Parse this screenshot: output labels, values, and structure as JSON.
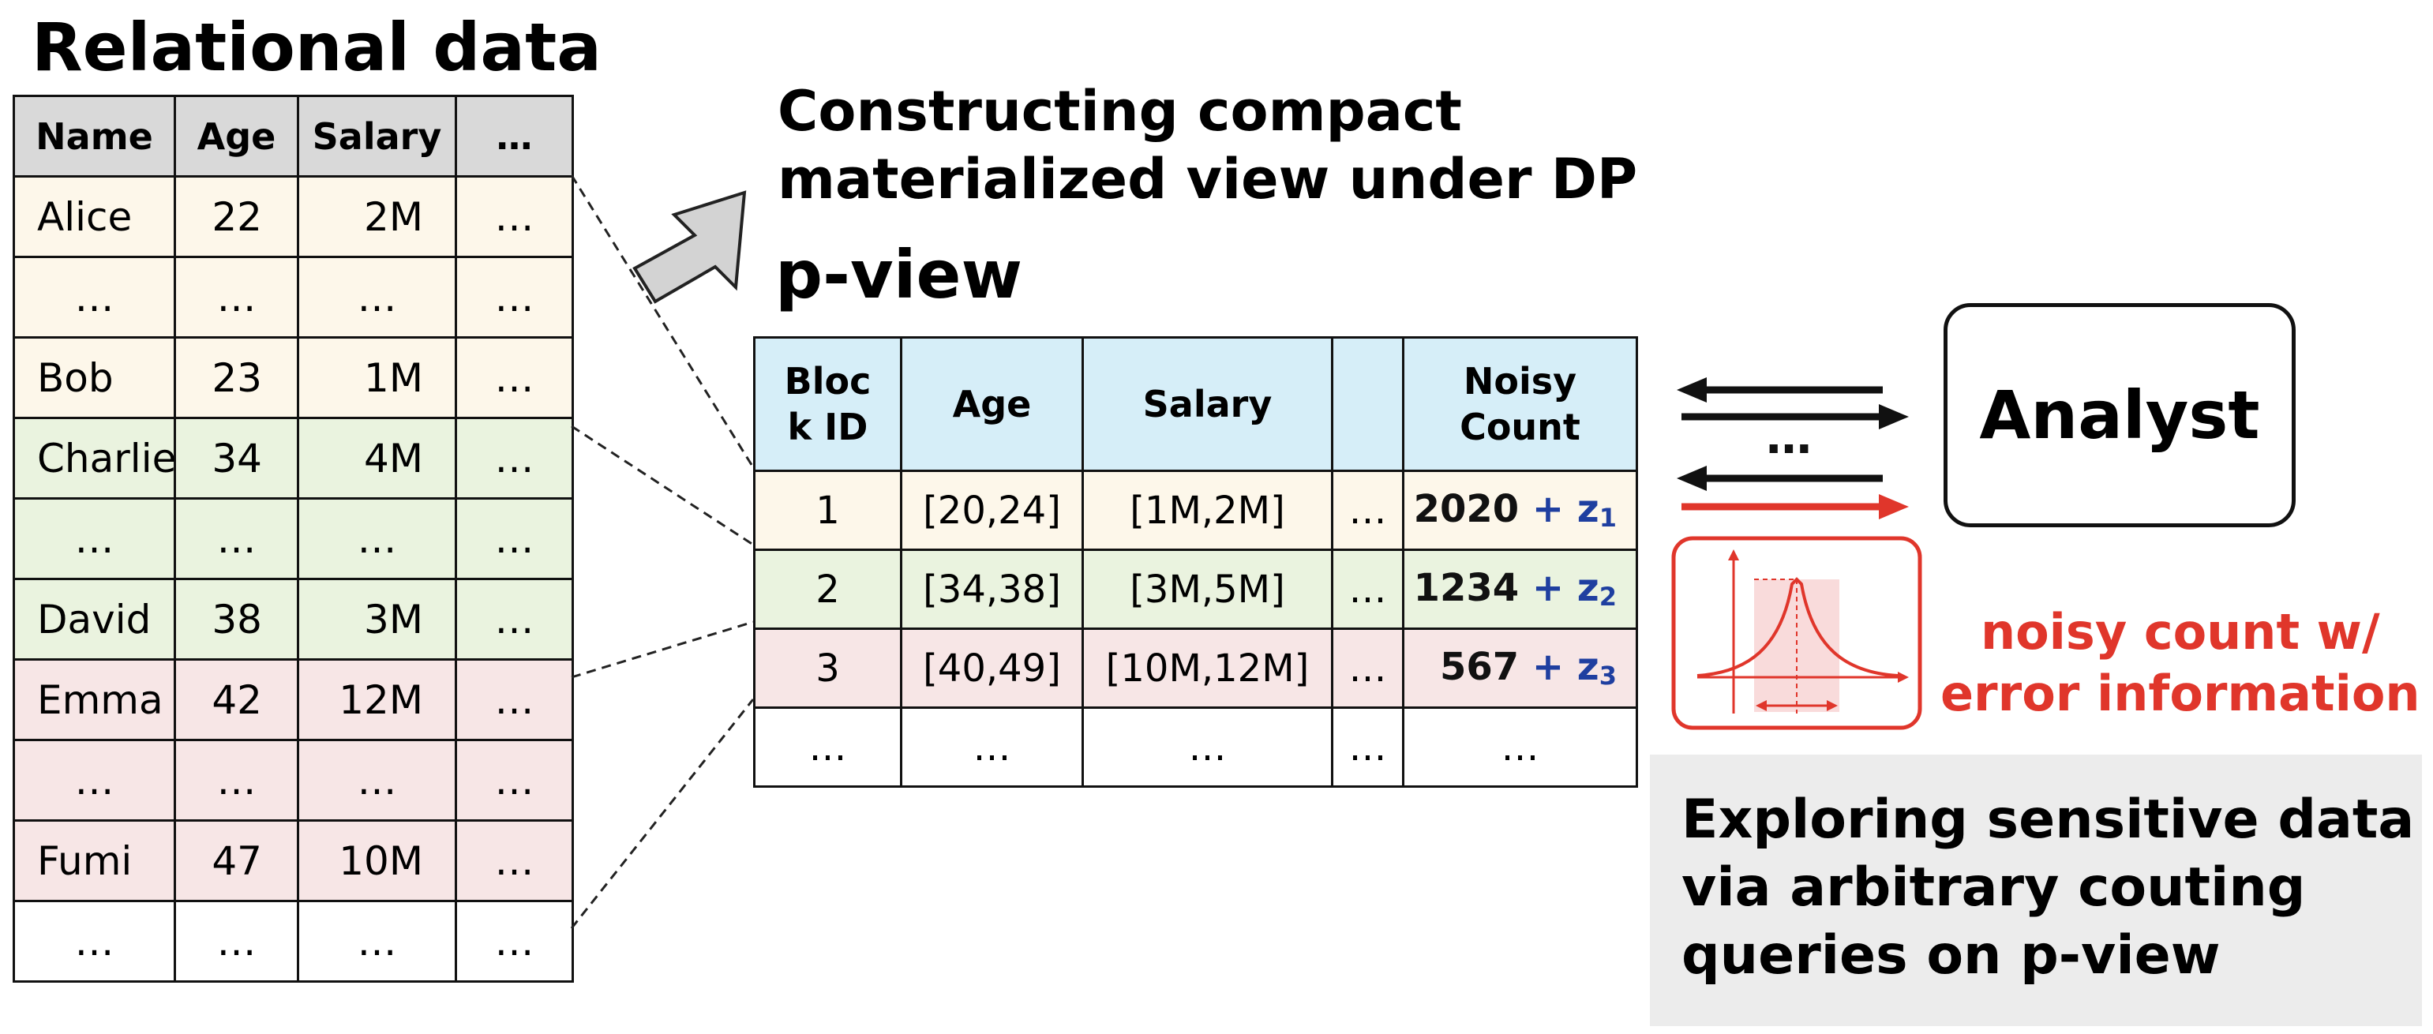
{
  "relational": {
    "title": "Relational data",
    "headers": [
      "Name",
      "Age",
      "Salary",
      "…"
    ],
    "rows": [
      {
        "group": "g1",
        "cells": [
          "Alice",
          "22",
          "2M",
          "…"
        ]
      },
      {
        "group": "g1",
        "cells": [
          "…",
          "…",
          "…",
          "…"
        ]
      },
      {
        "group": "g1",
        "cells": [
          "Bob",
          "23",
          "1M",
          "…"
        ]
      },
      {
        "group": "g2",
        "cells": [
          "Charlie",
          "34",
          "4M",
          "…"
        ]
      },
      {
        "group": "g2",
        "cells": [
          "…",
          "…",
          "…",
          "…"
        ]
      },
      {
        "group": "g2",
        "cells": [
          "David",
          "38",
          "3M",
          "…"
        ]
      },
      {
        "group": "g3",
        "cells": [
          "Emma",
          "42",
          "12M",
          "…"
        ]
      },
      {
        "group": "g3",
        "cells": [
          "…",
          "…",
          "…",
          "…"
        ]
      },
      {
        "group": "g3",
        "cells": [
          "Fumi",
          "47",
          "10M",
          "…"
        ]
      },
      {
        "group": "g0",
        "cells": [
          "…",
          "…",
          "…",
          "…"
        ]
      }
    ]
  },
  "construct": {
    "line1": "Constructing compact",
    "line2": "materialized view under DP"
  },
  "pview": {
    "title": "p-view",
    "headers": [
      "Bloc\nk ID",
      "Age",
      "Salary",
      "",
      "Noisy\nCount"
    ],
    "rows": [
      {
        "group": "g1",
        "id": "1",
        "age": "[20,24]",
        "salary": "[1M,2M]",
        "more": "…",
        "count": "2020",
        "plus": " + z",
        "sub": "1"
      },
      {
        "group": "g2",
        "id": "2",
        "age": "[34,38]",
        "salary": "[3M,5M]",
        "more": "…",
        "count": "1234",
        "plus": " + z",
        "sub": "2"
      },
      {
        "group": "g3",
        "id": "3",
        "age": "[40,49]",
        "salary": "[10M,12M]",
        "more": "…",
        "count": "567",
        "plus": " + z",
        "sub": "3"
      },
      {
        "group": "g0",
        "id": "…",
        "age": "…",
        "salary": "…",
        "more": "…",
        "count": "…",
        "plus": "",
        "sub": ""
      }
    ]
  },
  "analyst": {
    "label": "Analyst",
    "ellipsis": "…"
  },
  "error_info": {
    "line1": "noisy count w/",
    "line2": "error information"
  },
  "explore": {
    "line1": "Exploring sensitive data",
    "line2": "via arbitrary couting",
    "line3": "queries on p-view"
  },
  "colors": {
    "group1": "#fdf7ea",
    "group2": "#eaf3df",
    "group3": "#f7e6e6",
    "header_gray": "#d9d9d9",
    "header_blue": "#d6eef8",
    "noise_blue": "#1f3fa0",
    "error_red": "#e0362b"
  },
  "icons": [
    "block-arrow-icon",
    "request-arrow-icon",
    "response-arrow-icon",
    "noisy-response-arrow-icon",
    "laplace-distribution-icon"
  ]
}
